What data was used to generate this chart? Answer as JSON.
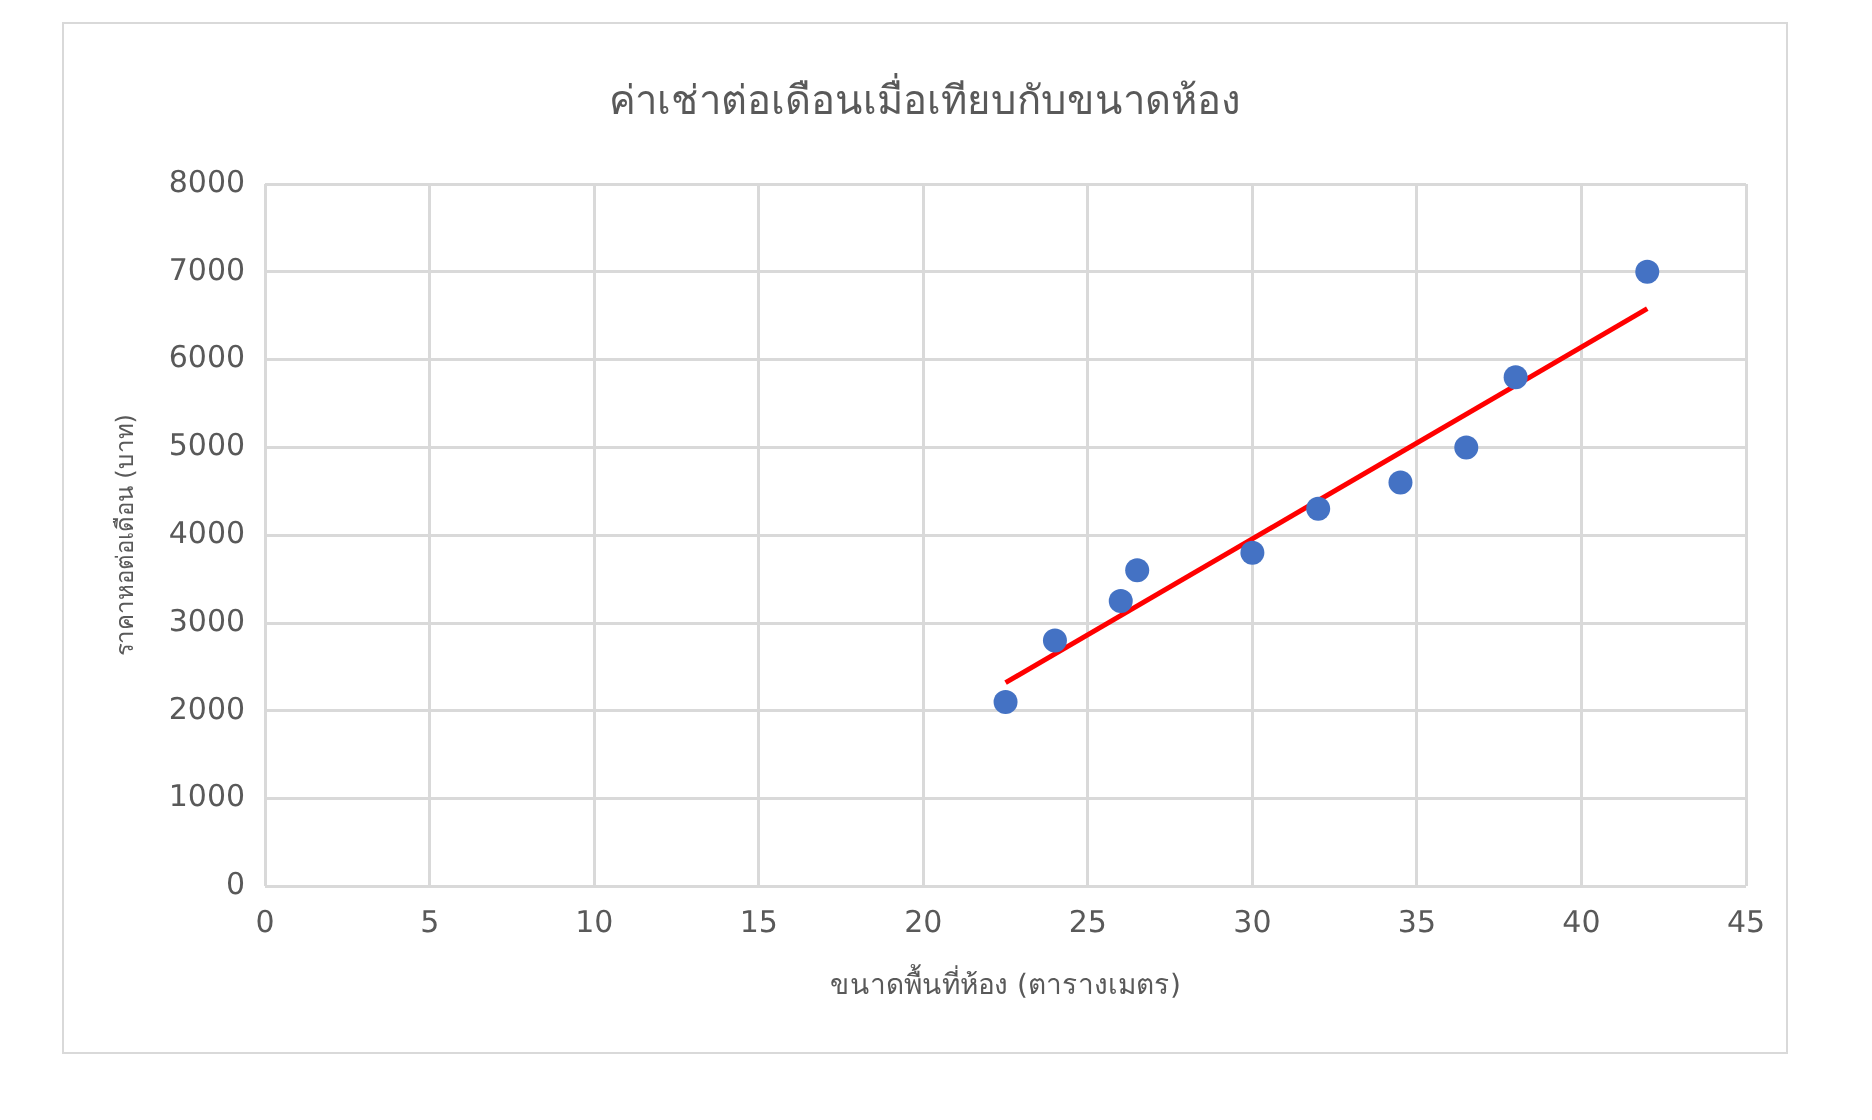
{
  "chart_data": {
    "type": "scatter",
    "title": "ค่าเช่าต่อเดือนเมื่อเทียบกับขนาดห้อง",
    "xlabel": "ขนาดพื้นที่ห้อง (ตารางเมตร)",
    "ylabel": "ราคาหอต่อเดือน (บาท)",
    "xlim": [
      0,
      45
    ],
    "xticks": [
      0,
      5,
      10,
      15,
      20,
      25,
      30,
      35,
      40,
      45
    ],
    "ylim": [
      0,
      8000
    ],
    "yticks": [
      0,
      1000,
      2000,
      3000,
      4000,
      5000,
      6000,
      7000,
      8000
    ],
    "grid": true,
    "legend": false,
    "marker": "circle",
    "series": [
      {
        "color": "#4472c4",
        "x": [
          22.5,
          24,
          26,
          26.5,
          30,
          32,
          34.5,
          36.5,
          38,
          42
        ],
        "values": [
          2100,
          2800,
          3250,
          3600,
          3800,
          4300,
          4600,
          5000,
          5800,
          7000
        ]
      },
      {
        "type": "line",
        "color": "#ff0000",
        "x": [
          22.5,
          42
        ],
        "values": [
          2320,
          6580
        ],
        "marker": "none"
      }
    ]
  }
}
